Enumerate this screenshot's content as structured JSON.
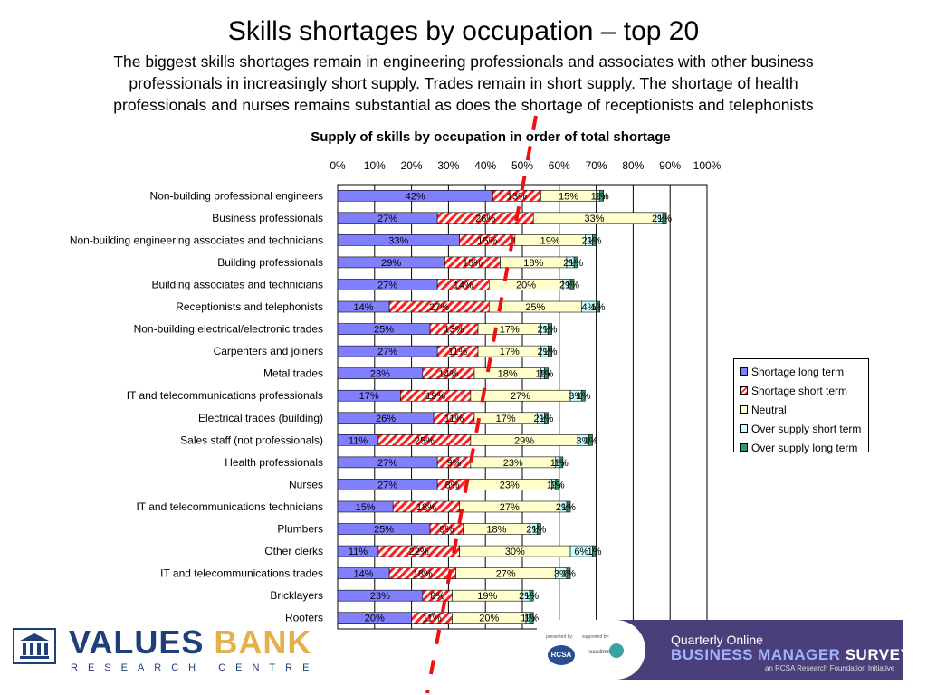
{
  "header": {
    "title": "Skills shortages by occupation – top 20",
    "subtitle_lines": [
      "The biggest skills shortages remain in engineering professionals and associates with other business",
      "professionals in increasingly short supply. Trades remain in short supply. The shortage of health",
      "professionals and nurses remains substantial as does the shortage of receptionists and telephonists"
    ]
  },
  "chart_data": {
    "type": "bar",
    "orientation": "horizontal",
    "stacked": true,
    "title": "Supply of skills by occupation in order of total shortage",
    "xlim": [
      0,
      100
    ],
    "x_ticks": [
      "0%",
      "10%",
      "20%",
      "30%",
      "40%",
      "50%",
      "60%",
      "70%",
      "80%",
      "90%",
      "100%"
    ],
    "grid": true,
    "legend_position": "right",
    "categories": [
      "Non-building professional engineers",
      "Business professionals",
      "Non-building engineering associates and technicians",
      "Building professionals",
      "Building associates and technicians",
      "Receptionists and telephonists",
      "Non-building electrical/electronic trades",
      "Carpenters and joiners",
      "Metal trades",
      "IT and telecommunications professionals",
      "Electrical trades (building)",
      "Sales staff (not professionals)",
      "Health professionals",
      "Nurses",
      "IT and telecommunications technicians",
      "Plumbers",
      "Other clerks",
      "IT and telecommunications trades",
      "Bricklayers",
      "Roofers"
    ],
    "series": [
      {
        "name": "Shortage long term",
        "color": "#8080ff",
        "pattern": "solid",
        "values": [
          42,
          27,
          33,
          29,
          27,
          14,
          25,
          27,
          23,
          17,
          26,
          11,
          27,
          27,
          15,
          25,
          11,
          14,
          23,
          20
        ],
        "labels": [
          "42%",
          "27%",
          "33%",
          "29%",
          "27%",
          "14%",
          "25%",
          "27%",
          "23%",
          "17%",
          "26%",
          "11%",
          "27%",
          "27%",
          "15%",
          "25%",
          "11%",
          "14%",
          "23%",
          "20%"
        ]
      },
      {
        "name": "Shortage short term",
        "color": "#ff2020",
        "pattern": "hatch",
        "values": [
          13,
          26,
          15,
          15,
          14,
          27,
          13,
          11,
          14,
          19,
          11,
          25,
          9,
          8,
          18,
          9,
          22,
          18,
          8,
          11
        ],
        "labels": [
          "13%",
          "26%",
          "15%",
          "15%",
          "14%",
          "27%",
          "13%",
          "11%",
          "14%",
          "19%",
          "11%",
          "25%",
          "9%",
          "8%",
          "18%",
          "9%",
          "22%",
          "18%",
          "8%",
          "11%"
        ]
      },
      {
        "name": "Neutral",
        "color": "#ffffcc",
        "pattern": "solid",
        "values": [
          15,
          33,
          19,
          18,
          20,
          25,
          17,
          17,
          18,
          27,
          17,
          29,
          23,
          23,
          27,
          18,
          30,
          27,
          19,
          20
        ],
        "labels": [
          "15%",
          "33%",
          "19%",
          "18%",
          "20%",
          "25%",
          "17%",
          "17%",
          "18%",
          "27%",
          "17%",
          "29%",
          "23%",
          "23%",
          "27%",
          "18%",
          "30%",
          "27%",
          "19%",
          "20%"
        ]
      },
      {
        "name": "Over supply short term",
        "color": "#ccffff",
        "pattern": "solid",
        "values": [
          1,
          2,
          2,
          2,
          2,
          4,
          2,
          2,
          1,
          3,
          2,
          3,
          1,
          1,
          2,
          2,
          6,
          3,
          2,
          1
        ],
        "labels": [
          "1%",
          "2%",
          "2%",
          "2%",
          "2%",
          "4%",
          "2%",
          "2%",
          "1%",
          "3%",
          "2%",
          "3%",
          "1%",
          "1%",
          "2%",
          "2%",
          "6%",
          "3%",
          "2%",
          "1%"
        ]
      },
      {
        "name": "Over supply long term",
        "color": "#339966",
        "pattern": "solid",
        "values": [
          1,
          1,
          1,
          1,
          1,
          1,
          1,
          1,
          1,
          1,
          1,
          1,
          1,
          1,
          1,
          1,
          1,
          1,
          1,
          1
        ],
        "labels": [
          "1%",
          "1%",
          "1%",
          "1%",
          "1%",
          "1%",
          "1%",
          "1%",
          "1%",
          "1%",
          "1%",
          "1%",
          "1%",
          "1%",
          "1%",
          "1%",
          "1%",
          "1%",
          "1%",
          "1%"
        ]
      }
    ]
  },
  "footer": {
    "logo_left": {
      "name_part1": "VALUES",
      "name_part2": "BANK",
      "subtitle": "RESEARCH CENTRE"
    },
    "banner": {
      "presented_by": "presented by:",
      "supported_by": "supported by:",
      "rcsa": "RCSA",
      "recruitment": "recruitment",
      "line1": "Quarterly Online",
      "line2_a": "BUSINESS MANAGER",
      "line2_b": "SURVEY",
      "line3": "an RCSA Research Foundation Initiative"
    }
  }
}
